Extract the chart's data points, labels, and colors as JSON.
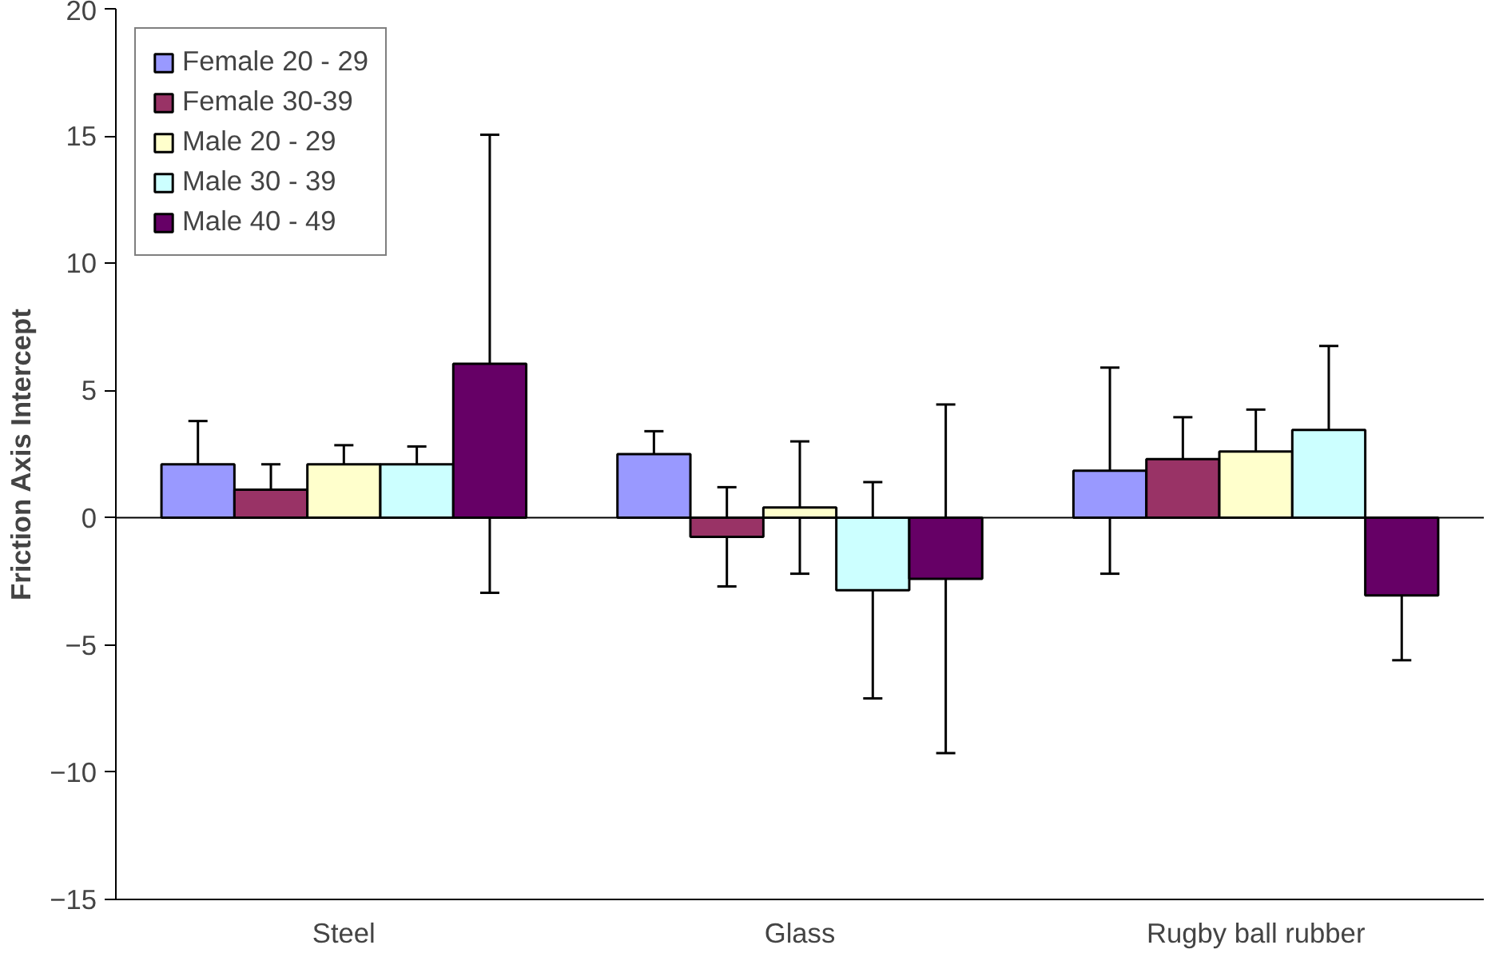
{
  "chart_data": {
    "type": "bar",
    "ylabel": "Friction Axis Intercept",
    "categories": [
      "Steel",
      "Glass",
      "Rugby ball rubber"
    ],
    "series": [
      {
        "name": "Female 20 - 29",
        "color": "#9999ff",
        "values": [
          2.1,
          2.5,
          1.85
        ],
        "errors": [
          1.7,
          0.9,
          4.05
        ]
      },
      {
        "name": "Female 30-39",
        "color": "#993366",
        "values": [
          1.1,
          -0.75,
          2.3
        ],
        "errors": [
          1.0,
          1.95,
          1.65
        ]
      },
      {
        "name": "Male 20 - 29",
        "color": "#ffffcc",
        "values": [
          2.1,
          0.4,
          2.6
        ],
        "errors": [
          0.75,
          2.6,
          1.65
        ]
      },
      {
        "name": "Male 30 - 39",
        "color": "#ccffff",
        "values": [
          2.1,
          -2.85,
          3.45
        ],
        "errors": [
          0.7,
          4.25,
          3.3
        ]
      },
      {
        "name": "Male 40 - 49",
        "color": "#660066",
        "values": [
          6.05,
          -2.4,
          -3.05
        ],
        "errors": [
          9.0,
          6.85,
          2.55
        ]
      }
    ],
    "ylim": [
      -15,
      20
    ],
    "yticks": [
      -15,
      -10,
      -5,
      0,
      5,
      10,
      15,
      20
    ],
    "ref_lines": [
      {
        "axis": "y",
        "value": 0,
        "color": "#000000"
      }
    ],
    "grid": false,
    "legend": "top left"
  }
}
